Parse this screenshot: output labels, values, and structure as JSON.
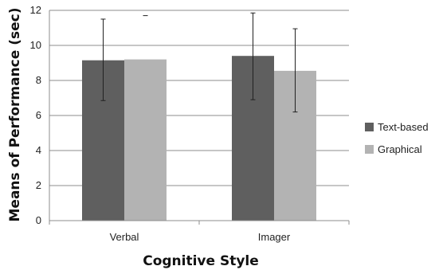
{
  "chart_data": {
    "type": "bar",
    "title": "",
    "xlabel": "Cognitive Style",
    "ylabel": "Means of Performance (sec)",
    "categories": [
      "Verbal",
      "Imager"
    ],
    "ylim": [
      0,
      12
    ],
    "yticks": [
      0,
      2,
      4,
      6,
      8,
      10,
      12
    ],
    "grid": "horizontal",
    "legend_position": "right",
    "series": [
      {
        "name": "Text-based",
        "color": "#5f5f5f",
        "values": [
          9.15,
          9.4
        ],
        "error_low": [
          6.85,
          6.9
        ],
        "error_high": [
          11.5,
          11.85
        ]
      },
      {
        "name": "Graphical",
        "color": "#b3b3b3",
        "values": [
          9.2,
          8.55
        ],
        "error_low": [
          null,
          6.2
        ],
        "error_high": [
          11.7,
          10.95
        ]
      }
    ]
  }
}
